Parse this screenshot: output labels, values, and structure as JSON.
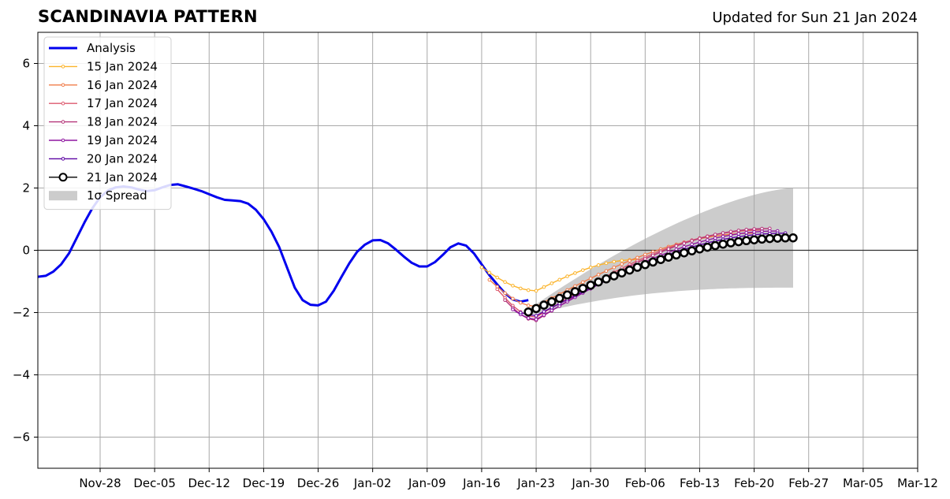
{
  "header": {
    "title": "SCANDINAVIA PATTERN",
    "updated": "Updated for Sun 21 Jan 2024"
  },
  "chart_data": {
    "type": "line",
    "title": "SCANDINAVIA PATTERN",
    "xlabel": "",
    "ylabel": "",
    "ylim": [
      -7,
      7
    ],
    "xlim": [
      "2023-11-20",
      "2024-03-12"
    ],
    "grid": true,
    "legend_position": "top-left",
    "y_ticks": [
      -6,
      -4,
      -2,
      0,
      2,
      4,
      6
    ],
    "y_tick_labels": [
      "−6",
      "−4",
      "−2",
      "0",
      "2",
      "4",
      "6"
    ],
    "x_ticks": [
      "2023-11-28",
      "2023-12-05",
      "2023-12-12",
      "2023-12-19",
      "2023-12-26",
      "2024-01-02",
      "2024-01-09",
      "2024-01-16",
      "2024-01-23",
      "2024-01-30",
      "2024-02-06",
      "2024-02-13",
      "2024-02-20",
      "2024-02-27",
      "2024-03-05",
      "2024-03-12"
    ],
    "x_tick_labels": [
      "Nov-28",
      "Dec-05",
      "Dec-12",
      "Dec-19",
      "Dec-26",
      "Jan-02",
      "Jan-09",
      "Jan-16",
      "Jan-23",
      "Jan-30",
      "Feb-06",
      "Feb-13",
      "Feb-20",
      "Feb-27",
      "Mar-05",
      "Mar-12"
    ],
    "series": [
      {
        "name": "Analysis",
        "kind": "analysis",
        "color": "#0000ee",
        "start": "2023-11-20",
        "values": [
          -0.85,
          -0.82,
          -0.68,
          -0.45,
          -0.1,
          0.4,
          0.9,
          1.35,
          1.7,
          1.92,
          2.02,
          2.05,
          2.02,
          1.95,
          1.9,
          1.93,
          2.02,
          2.1,
          2.12,
          2.05,
          1.98,
          1.9,
          1.8,
          1.7,
          1.62,
          1.6,
          1.58,
          1.5,
          1.3,
          1.0,
          0.6,
          0.1,
          -0.55,
          -1.2,
          -1.6,
          -1.75,
          -1.77,
          -1.65,
          -1.3,
          -0.85,
          -0.42,
          -0.05,
          0.18,
          0.32,
          0.33,
          0.22,
          0.02,
          -0.2,
          -0.4,
          -0.52,
          -0.52,
          -0.38,
          -0.15,
          0.1,
          0.22,
          0.15,
          -0.1,
          -0.45,
          -0.8,
          -1.1,
          -1.38,
          -1.58,
          -1.65,
          -1.6
        ]
      },
      {
        "name": "15 Jan 2024",
        "kind": "forecast",
        "color": "#fbb42c",
        "start": "2024-01-16",
        "end": "2024-02-05",
        "y0": -0.55,
        "ymin": -1.3,
        "tmin": 7,
        "y_end": -0.3
      },
      {
        "name": "16 Jan 2024",
        "kind": "forecast",
        "color": "#f07c4a",
        "start": "2024-01-17",
        "end": "2024-02-20",
        "y0": -0.95,
        "ymin": -1.8,
        "tmin": 6,
        "y_end": 0.55
      },
      {
        "name": "17 Jan 2024",
        "kind": "forecast",
        "color": "#dd5a6e",
        "start": "2024-01-18",
        "end": "2024-02-21",
        "y0": -1.25,
        "ymin": -2.15,
        "tmin": 5,
        "y_end": 0.65
      },
      {
        "name": "18 Jan 2024",
        "kind": "forecast",
        "color": "#b5367a",
        "start": "2024-01-19",
        "end": "2024-02-22",
        "y0": -1.6,
        "ymin": -2.25,
        "tmin": 4,
        "y_end": 0.7
      },
      {
        "name": "19 Jan 2024",
        "kind": "forecast",
        "color": "#8f17a0",
        "start": "2024-01-20",
        "end": "2024-02-23",
        "y0": -1.9,
        "ymin": -2.22,
        "tmin": 3,
        "y_end": 0.62
      },
      {
        "name": "20 Jan 2024",
        "kind": "forecast",
        "color": "#5c03a3",
        "start": "2024-01-21",
        "end": "2024-02-24",
        "y0": -2.0,
        "ymin": -2.1,
        "tmin": 2,
        "y_end": 0.55
      },
      {
        "name": "21 Jan 2024",
        "kind": "forecast",
        "color": "#000000",
        "start": "2024-01-22",
        "end": "2024-02-25",
        "y0": -1.98,
        "ymin": -1.98,
        "tmin": 0,
        "y_end": 0.4
      }
    ],
    "spread": {
      "name": "1σ Spread",
      "color": "#cccccc",
      "start": "2024-01-22",
      "end": "2024-02-25",
      "upper_start": -1.9,
      "upper_end": 2.0,
      "lower_start": -2.1,
      "lower_end": -1.2
    }
  }
}
